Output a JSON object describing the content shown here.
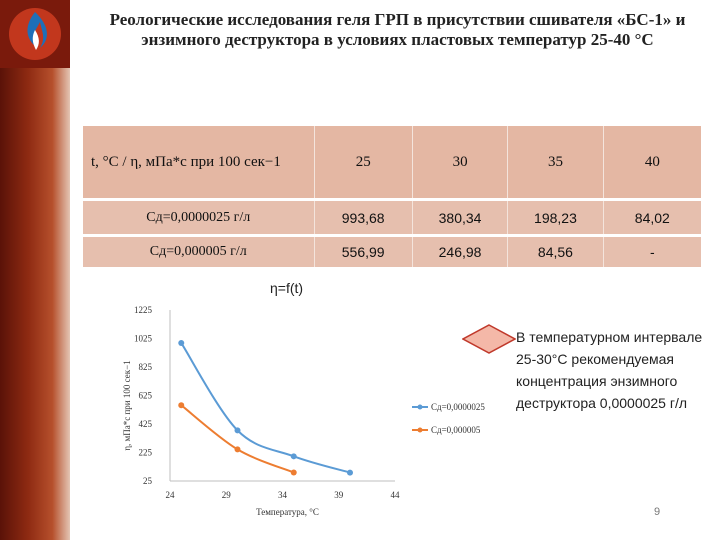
{
  "title": "Реологические исследования геля ГРП в присутствии сшивателя «БС-1» и энзимного деструктора в условиях пластовых температур 25-40 °С",
  "table": {
    "header": [
      "t, °С / η, мПа*с при 100 сек−1",
      "25",
      "30",
      "35",
      "40"
    ],
    "rows": [
      [
        "Сд=0,0000025 г/л",
        "993,68",
        "380,34",
        "198,23",
        "84,02"
      ],
      [
        "Сд=0,000005 г/л",
        "556,99",
        "246,98",
        "84,56",
        "-"
      ]
    ]
  },
  "note": "В температурном интервале 25-30°С рекомендуемая концентрация энзимного деструктора 0,0000025 г/л",
  "page_number": "9",
  "colors": {
    "series1": "#5b9bd5",
    "series2": "#ed7d31",
    "header_bg": "#e4b7a3",
    "row_bg": "#e6bfae",
    "sidebar": "#8e2a12",
    "diamond_fill": "#f4b8a8",
    "diamond_stroke": "#c0392b"
  },
  "chart_data": {
    "type": "line",
    "title": "η=f(t)",
    "xlabel": "Температура, °С",
    "ylabel": "η, мПа*с при 100 сек−1",
    "xlim": [
      24,
      44
    ],
    "ylim": [
      25,
      1225
    ],
    "xticks": [
      24,
      29,
      34,
      39,
      44
    ],
    "yticks": [
      25,
      225,
      425,
      625,
      825,
      1025,
      1225
    ],
    "grid": false,
    "legend": "right",
    "series": [
      {
        "name": "Сд=0,0000025",
        "x": [
          25,
          30,
          35,
          40
        ],
        "values": [
          993.68,
          380.34,
          198.23,
          84.02
        ]
      },
      {
        "name": "Сд=0,000005",
        "x": [
          25,
          30,
          35
        ],
        "values": [
          556.99,
          246.98,
          84.56
        ]
      }
    ]
  }
}
